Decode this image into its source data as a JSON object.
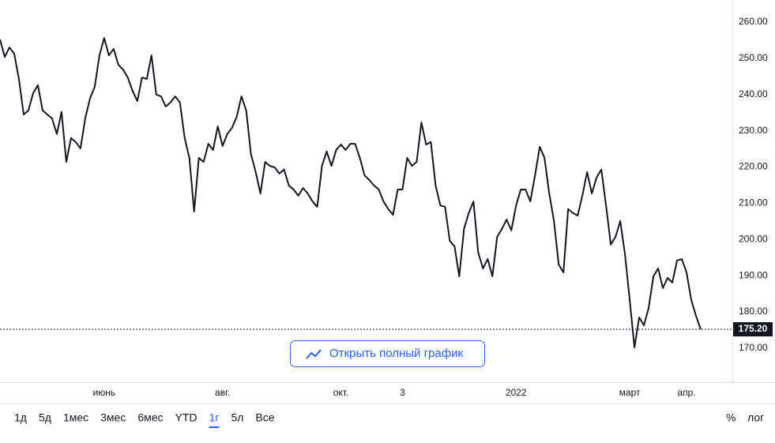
{
  "chart_data": {
    "type": "line",
    "categories": [
      null,
      null,
      null,
      null,
      null,
      null,
      null,
      null,
      null,
      null,
      null,
      null,
      null,
      null,
      null,
      null,
      null,
      null,
      null,
      null,
      null,
      null,
      "июнь",
      null,
      null,
      null,
      null,
      null,
      null,
      null,
      null,
      null,
      null,
      null,
      null,
      null,
      null,
      null,
      null,
      null,
      null,
      null,
      null,
      null,
      null,
      null,
      null,
      "авг.",
      null,
      null,
      null,
      null,
      null,
      null,
      null,
      null,
      null,
      null,
      null,
      null,
      null,
      null,
      null,
      null,
      null,
      null,
      null,
      null,
      null,
      null,
      null,
      null,
      "окт.",
      null,
      null,
      null,
      null,
      null,
      null,
      null,
      null,
      null,
      null,
      null,
      null,
      "3",
      null,
      null,
      null,
      null,
      null,
      null,
      null,
      null,
      null,
      null,
      null,
      null,
      null,
      null,
      null,
      null,
      null,
      null,
      null,
      null,
      null,
      null,
      null,
      "2022",
      null,
      null,
      null,
      null,
      null,
      null,
      null,
      null,
      null,
      null,
      null,
      null,
      null,
      null,
      null,
      null,
      null,
      null,
      null,
      null,
      null,
      null,
      null,
      "март",
      null,
      null,
      null,
      null,
      null,
      null,
      null,
      null,
      null,
      null,
      null,
      "апр.",
      null,
      null,
      null
    ],
    "series": [
      {
        "color": "#131722",
        "values": [
          255.2,
          250.4,
          253.0,
          251.3,
          244.3,
          234.5,
          235.6,
          240.4,
          242.6,
          235.6,
          234.5,
          233.4,
          229.1,
          235.2,
          221.4,
          228.0,
          226.9,
          225.1,
          233.4,
          238.9,
          242.1,
          250.8,
          255.6,
          250.8,
          252.6,
          248.2,
          246.9,
          244.7,
          241.0,
          238.2,
          244.7,
          244.3,
          250.8,
          240.0,
          239.5,
          236.7,
          237.8,
          239.5,
          237.8,
          228.0,
          222.5,
          207.7,
          222.5,
          221.4,
          226.4,
          224.7,
          231.2,
          225.8,
          229.1,
          230.8,
          233.9,
          239.5,
          235.6,
          223.6,
          218.6,
          212.7,
          221.4,
          220.3,
          219.9,
          218.2,
          219.3,
          214.9,
          213.8,
          212.1,
          214.2,
          212.7,
          210.5,
          209.0,
          220.3,
          224.3,
          220.3,
          224.7,
          226.2,
          224.7,
          226.4,
          226.4,
          222.5,
          217.7,
          216.4,
          214.9,
          213.8,
          210.5,
          208.4,
          206.8,
          213.8,
          213.8,
          222.5,
          220.3,
          221.4,
          232.3,
          226.2,
          226.9,
          214.9,
          209.4,
          209.0,
          199.6,
          198.1,
          189.8,
          202.9,
          207.3,
          210.5,
          196.4,
          192.0,
          194.6,
          189.8,
          200.7,
          202.9,
          205.5,
          202.5,
          209.4,
          213.8,
          213.8,
          210.5,
          217.7,
          225.6,
          222.5,
          212.7,
          205.1,
          193.1,
          190.9,
          208.4,
          207.3,
          206.6,
          212.1,
          218.6,
          212.7,
          217.1,
          219.3,
          209.4,
          198.6,
          200.7,
          205.1,
          195.9,
          183.3,
          170.2,
          178.5,
          176.3,
          181.1,
          189.8,
          192.0,
          186.6,
          189.4,
          188.1,
          194.2,
          194.6,
          190.9,
          183.3,
          178.9,
          175.2
        ]
      }
    ],
    "ylim": [
      160.6,
      266.1
    ],
    "yticks": [
      {
        "value": 170,
        "label": "170.00"
      },
      {
        "value": 180,
        "label": "180.00"
      },
      {
        "value": 190,
        "label": "190.00"
      },
      {
        "value": 200,
        "label": "200.00"
      },
      {
        "value": 210,
        "label": "210.00"
      },
      {
        "value": 220,
        "label": "220.00"
      },
      {
        "value": 230,
        "label": "230.00"
      },
      {
        "value": 240,
        "label": "240.00"
      },
      {
        "value": 250,
        "label": "250.00"
      },
      {
        "value": 260,
        "label": "260.00"
      }
    ],
    "last_price": {
      "value": 175.2,
      "label": "175.20"
    }
  },
  "button": "Открыть полный график",
  "toolbar": {
    "ranges": [
      "1д",
      "5д",
      "1мес",
      "3мес",
      "6мес",
      "YTD",
      "1г",
      "5л",
      "Все"
    ],
    "selected": "1г",
    "scale_options": [
      "%",
      "лог"
    ]
  }
}
